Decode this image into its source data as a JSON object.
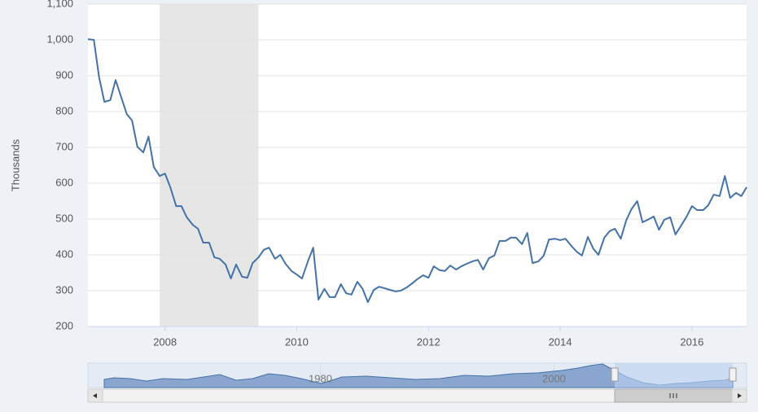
{
  "chart_data": {
    "type": "line",
    "y_label": "Thousands",
    "x": [
      2006.83,
      2006.92,
      2007.0,
      2007.08,
      2007.17,
      2007.25,
      2007.33,
      2007.42,
      2007.5,
      2007.58,
      2007.67,
      2007.75,
      2007.83,
      2007.92,
      2008.0,
      2008.08,
      2008.17,
      2008.25,
      2008.33,
      2008.42,
      2008.5,
      2008.58,
      2008.67,
      2008.75,
      2008.83,
      2008.92,
      2009.0,
      2009.08,
      2009.17,
      2009.25,
      2009.33,
      2009.42,
      2009.5,
      2009.58,
      2009.67,
      2009.75,
      2009.83,
      2009.92,
      2010.0,
      2010.08,
      2010.17,
      2010.25,
      2010.33,
      2010.42,
      2010.5,
      2010.58,
      2010.67,
      2010.75,
      2010.83,
      2010.92,
      2011.0,
      2011.08,
      2011.17,
      2011.25,
      2011.33,
      2011.42,
      2011.5,
      2011.58,
      2011.67,
      2011.75,
      2011.83,
      2011.92,
      2012.0,
      2012.08,
      2012.17,
      2012.25,
      2012.33,
      2012.42,
      2012.5,
      2012.58,
      2012.67,
      2012.75,
      2012.83,
      2012.92,
      2013.0,
      2013.08,
      2013.17,
      2013.25,
      2013.33,
      2013.42,
      2013.5,
      2013.58,
      2013.67,
      2013.75,
      2013.83,
      2013.92,
      2014.0,
      2014.08,
      2014.17,
      2014.25,
      2014.33,
      2014.42,
      2014.5,
      2014.58,
      2014.67,
      2014.75,
      2014.83,
      2014.92,
      2015.0,
      2015.08,
      2015.17,
      2015.25,
      2015.33,
      2015.42,
      2015.5,
      2015.58,
      2015.67,
      2015.75,
      2015.83,
      2015.92,
      2016.0,
      2016.08,
      2016.17,
      2016.25,
      2016.33,
      2016.42,
      2016.5,
      2016.58,
      2016.67,
      2016.75,
      2016.83
    ],
    "series": [
      {
        "color": "#4572a7",
        "values": [
          1002,
          1000,
          895,
          827,
          832,
          888,
          843,
          793,
          775,
          702,
          686,
          730,
          645,
          620,
          627,
          589,
          536,
          536,
          505,
          484,
          473,
          434,
          434,
          393,
          389,
          373,
          334,
          373,
          339,
          336,
          377,
          393,
          414,
          420,
          389,
          400,
          375,
          355,
          345,
          334,
          382,
          420,
          275,
          305,
          282,
          282,
          318,
          293,
          289,
          325,
          305,
          268,
          302,
          311,
          307,
          302,
          298,
          300,
          309,
          320,
          332,
          343,
          336,
          368,
          357,
          355,
          370,
          359,
          368,
          375,
          382,
          386,
          359,
          391,
          398,
          439,
          439,
          448,
          448,
          430,
          461,
          377,
          382,
          398,
          443,
          445,
          441,
          445,
          425,
          409,
          398,
          450,
          418,
          400,
          448,
          466,
          473,
          445,
          495,
          527,
          550,
          491,
          498,
          507,
          470,
          498,
          505,
          457,
          480,
          507,
          536,
          525,
          525,
          539,
          568,
          564,
          620,
          559,
          573,
          564,
          589
        ]
      }
    ],
    "xlim": [
      2006.83,
      2016.83
    ],
    "xticks": [
      2008,
      2010,
      2012,
      2014,
      2016
    ],
    "ylim": [
      200,
      1100
    ],
    "yticks": [
      200,
      300,
      400,
      500,
      600,
      700,
      800,
      900,
      {
        "value": 1000,
        "label": "1,000"
      },
      {
        "value": 1100,
        "label": "1,100"
      }
    ],
    "recession": [
      2007.92,
      2009.42
    ],
    "grid": true,
    "navigator": {
      "xlim": [
        1961.5,
        2015.3
      ],
      "xticks": [
        1980,
        2000
      ]
    }
  }
}
